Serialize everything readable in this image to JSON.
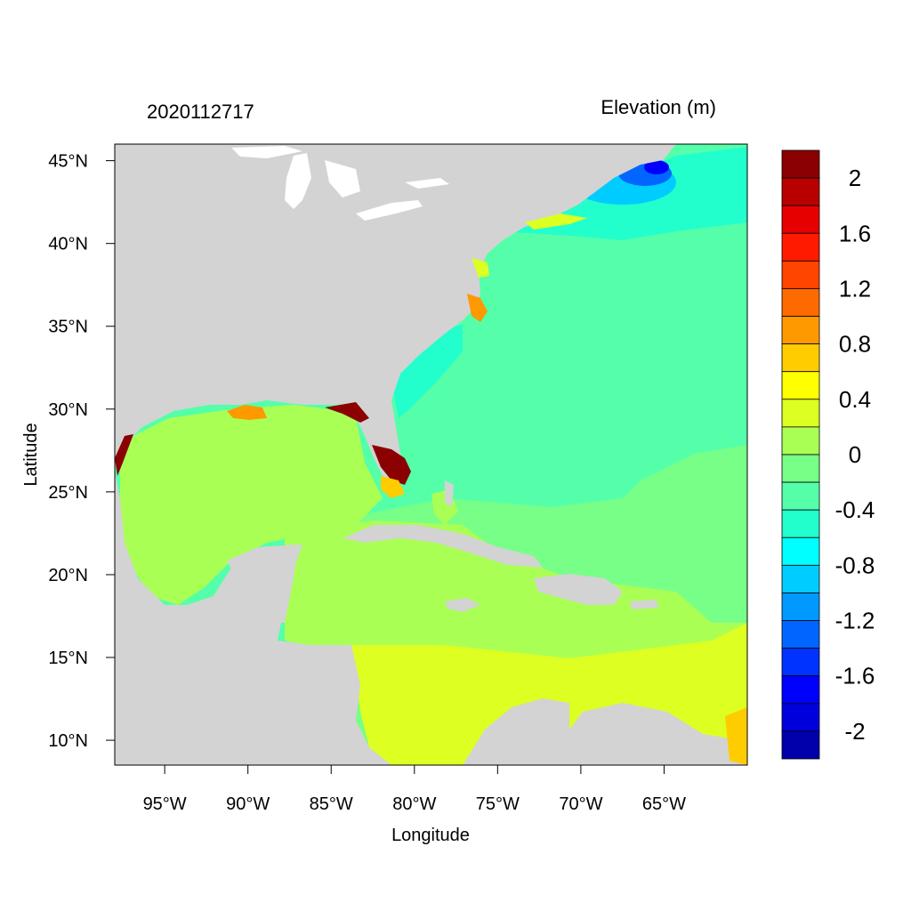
{
  "map": {
    "left_title": "2020112717",
    "right_title": "Elevation (m)",
    "xlabel": "Longitude",
    "ylabel": "Latitude",
    "lon_range": [
      -98,
      -60
    ],
    "lat_range": [
      8.5,
      46
    ],
    "x_ticks": [
      {
        "value": -95,
        "label": "95°W"
      },
      {
        "value": -90,
        "label": "90°W"
      },
      {
        "value": -85,
        "label": "85°W"
      },
      {
        "value": -80,
        "label": "80°W"
      },
      {
        "value": -75,
        "label": "75°W"
      },
      {
        "value": -70,
        "label": "70°W"
      },
      {
        "value": -65,
        "label": "65°W"
      }
    ],
    "y_ticks": [
      {
        "value": 45,
        "label": "45°N"
      },
      {
        "value": 40,
        "label": "40°N"
      },
      {
        "value": 35,
        "label": "35°N"
      },
      {
        "value": 30,
        "label": "30°N"
      },
      {
        "value": 25,
        "label": "25°N"
      },
      {
        "value": 20,
        "label": "20°N"
      },
      {
        "value": 15,
        "label": "15°N"
      },
      {
        "value": 10,
        "label": "10°N"
      }
    ],
    "land_color": "#d3d3d3"
  },
  "colorbar": {
    "colors_top_to_bottom": [
      "#8b0000",
      "#b80000",
      "#e60000",
      "#ff1a00",
      "#ff4500",
      "#ff6a00",
      "#ff9900",
      "#ffcc00",
      "#ffff00",
      "#ddff22",
      "#aaff55",
      "#77ff88",
      "#55ffaa",
      "#22ffcc",
      "#00ffff",
      "#00ccff",
      "#0099ff",
      "#0066ff",
      "#0033ff",
      "#0000ff",
      "#0000dd",
      "#0000aa"
    ],
    "labels": [
      {
        "text": "2",
        "index": 1
      },
      {
        "text": "1.6",
        "index": 3
      },
      {
        "text": "1.2",
        "index": 5
      },
      {
        "text": "0.8",
        "index": 7
      },
      {
        "text": "0.4",
        "index": 9
      },
      {
        "text": "0",
        "index": 11
      },
      {
        "text": "-0.4",
        "index": 13
      },
      {
        "text": "-0.8",
        "index": 15
      },
      {
        "text": "-1.2",
        "index": 17
      },
      {
        "text": "-1.6",
        "index": 19
      },
      {
        "text": "-2",
        "index": 21
      }
    ]
  }
}
